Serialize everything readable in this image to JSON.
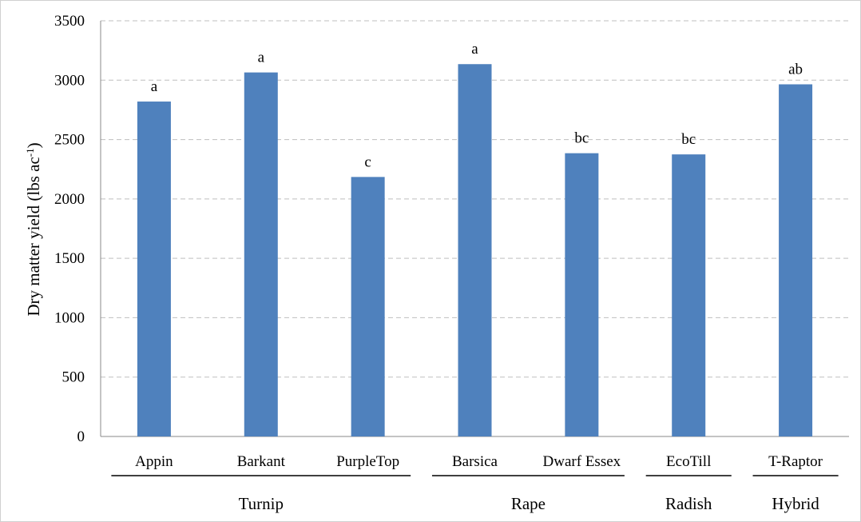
{
  "chart_data": {
    "type": "bar",
    "ylabel": "Dry matter yield (lbs ac",
    "ylabel_sup": "-1",
    "ylabel_suffix": ")",
    "ylim": [
      0,
      3500
    ],
    "yticks": [
      "0",
      "500",
      "1000",
      "1500",
      "2000",
      "2500",
      "3000",
      "3500"
    ],
    "grid": "horizontal dashed",
    "colors": {
      "bar": "#4f81bd",
      "grid": "#bfbfbf",
      "axis": "#888888"
    },
    "categories": [
      "Appin",
      "Barkant",
      "PurpleTop",
      "Barsica",
      "Dwarf Essex",
      "EcoTill",
      "T-Raptor"
    ],
    "values": [
      2820,
      3065,
      2185,
      3135,
      2385,
      2375,
      2965
    ],
    "data_labels": [
      "a",
      "a",
      "c",
      "a",
      "bc",
      "bc",
      "ab"
    ],
    "groups": [
      {
        "name": "Turnip",
        "start": 0,
        "end": 2
      },
      {
        "name": "Rape",
        "start": 3,
        "end": 4
      },
      {
        "name": "Radish",
        "start": 5,
        "end": 5
      },
      {
        "name": "Hybrid",
        "start": 6,
        "end": 6
      }
    ]
  }
}
